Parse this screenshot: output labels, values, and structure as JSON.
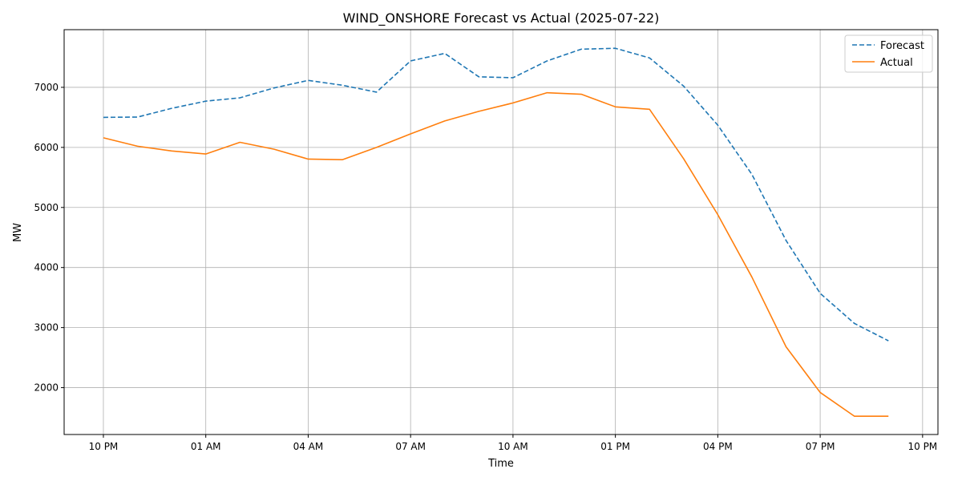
{
  "chart_data": {
    "type": "line",
    "title": "WIND_ONSHORE Forecast vs Actual (2025-07-22)",
    "xlabel": "Time",
    "ylabel": "MW",
    "x": [
      "10 PM",
      "11 PM",
      "12 AM",
      "01 AM",
      "02 AM",
      "03 AM",
      "04 AM",
      "05 AM",
      "06 AM",
      "07 AM",
      "08 AM",
      "09 AM",
      "10 AM",
      "11 AM",
      "12 PM",
      "01 PM",
      "02 PM",
      "03 PM",
      "04 PM",
      "05 PM",
      "06 PM",
      "07 PM",
      "08 PM",
      "09 PM"
    ],
    "x_ticks": [
      "10 PM",
      "01 AM",
      "04 AM",
      "07 AM",
      "10 AM",
      "01 PM",
      "04 PM",
      "07 PM",
      "10 PM"
    ],
    "x_tick_hour_index": [
      0,
      3,
      6,
      9,
      12,
      15,
      18,
      21,
      24
    ],
    "xlim_hours": [
      -1.15,
      24.45
    ],
    "ylim": [
      1220,
      7960
    ],
    "y_ticks": [
      2000,
      3000,
      4000,
      5000,
      6000,
      7000
    ],
    "grid": true,
    "legend_position": "top-right",
    "series": [
      {
        "name": "Forecast",
        "style": "dashed",
        "color": "#1f77b4",
        "values": [
          6500,
          6505,
          6650,
          6770,
          6825,
          6990,
          7115,
          7035,
          6920,
          7440,
          7565,
          7175,
          7160,
          7440,
          7635,
          7650,
          7490,
          7020,
          6370,
          5550,
          4450,
          3570,
          3070,
          2780
        ]
      },
      {
        "name": "Actual",
        "style": "solid",
        "color": "#ff7f0e",
        "values": [
          6160,
          6020,
          5940,
          5890,
          6085,
          5970,
          5805,
          5795,
          6000,
          6225,
          6440,
          6600,
          6740,
          6910,
          6885,
          6675,
          6635,
          5810,
          4880,
          3840,
          2680,
          1920,
          1525,
          1525
        ]
      }
    ]
  }
}
